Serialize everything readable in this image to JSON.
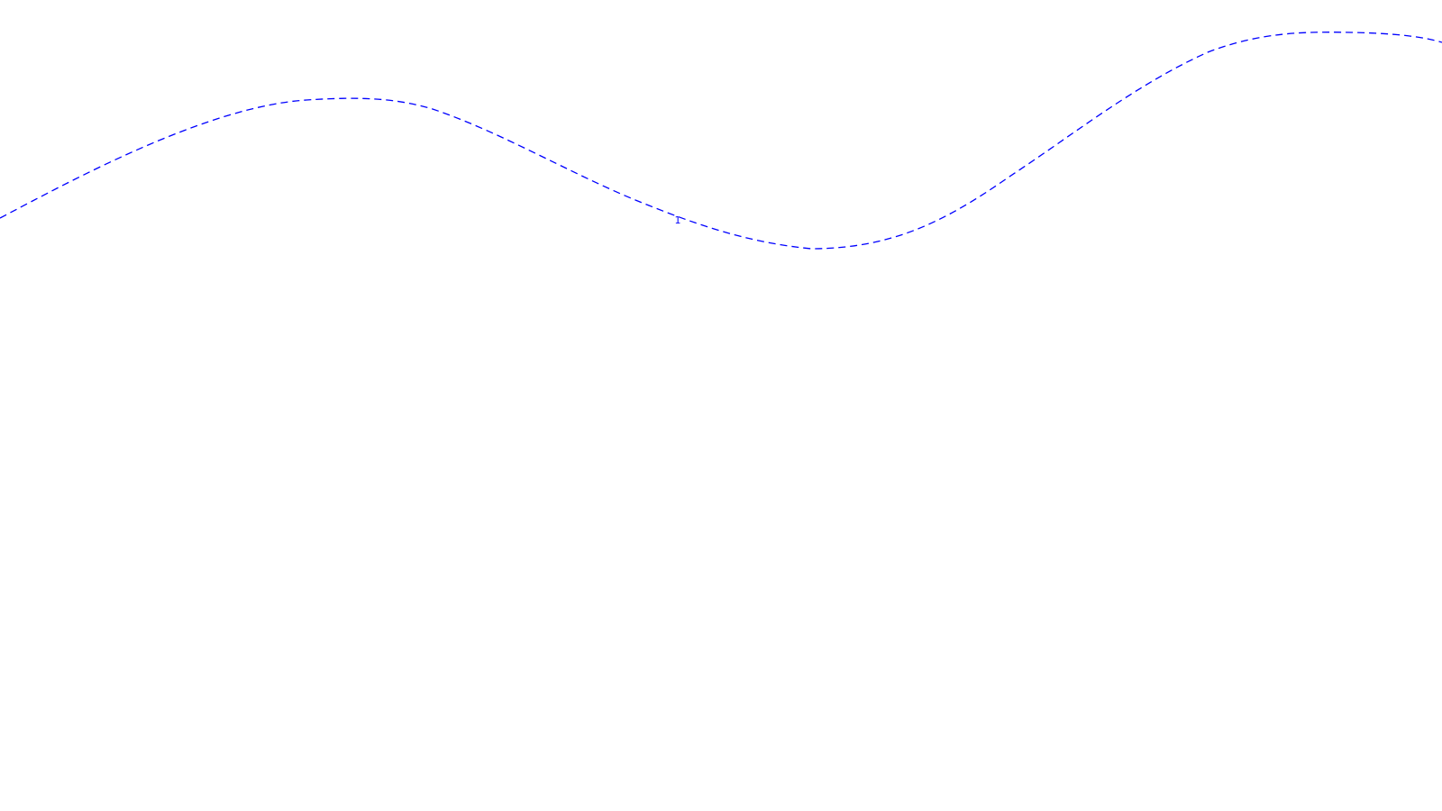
{
  "map": {
    "route": {
      "style": "dashed",
      "color": "#0000ff",
      "marker_label": "1"
    }
  }
}
